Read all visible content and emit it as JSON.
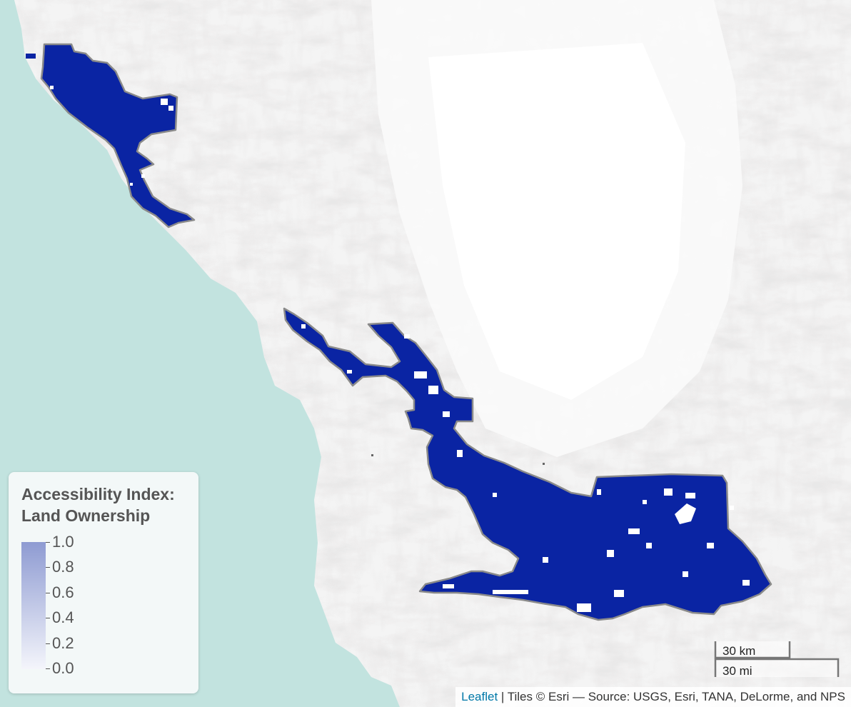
{
  "legend": {
    "title_line1": "Accessibility Index:",
    "title_line2": "Land Ownership",
    "ticks": [
      "1.0",
      "0.8",
      "0.6",
      "0.4",
      "0.2",
      "0.0"
    ],
    "gradient_top": "#8e9bd2",
    "gradient_bottom": "#f4f5fb"
  },
  "scale": {
    "km_label": "30 km",
    "mi_label": "30 mi"
  },
  "attribution": {
    "leaflet": "Leaflet",
    "separator": " | ",
    "tiles": "Tiles © Esri — Source: USGS, Esri, TANA, DeLorme, and NPS"
  },
  "colors": {
    "ocean": "#c2e3df",
    "land": "#f4f4f4",
    "relief": "#d9d6d6",
    "region_fill": "#0a24a3",
    "region_outline": "#8a8a8a"
  }
}
